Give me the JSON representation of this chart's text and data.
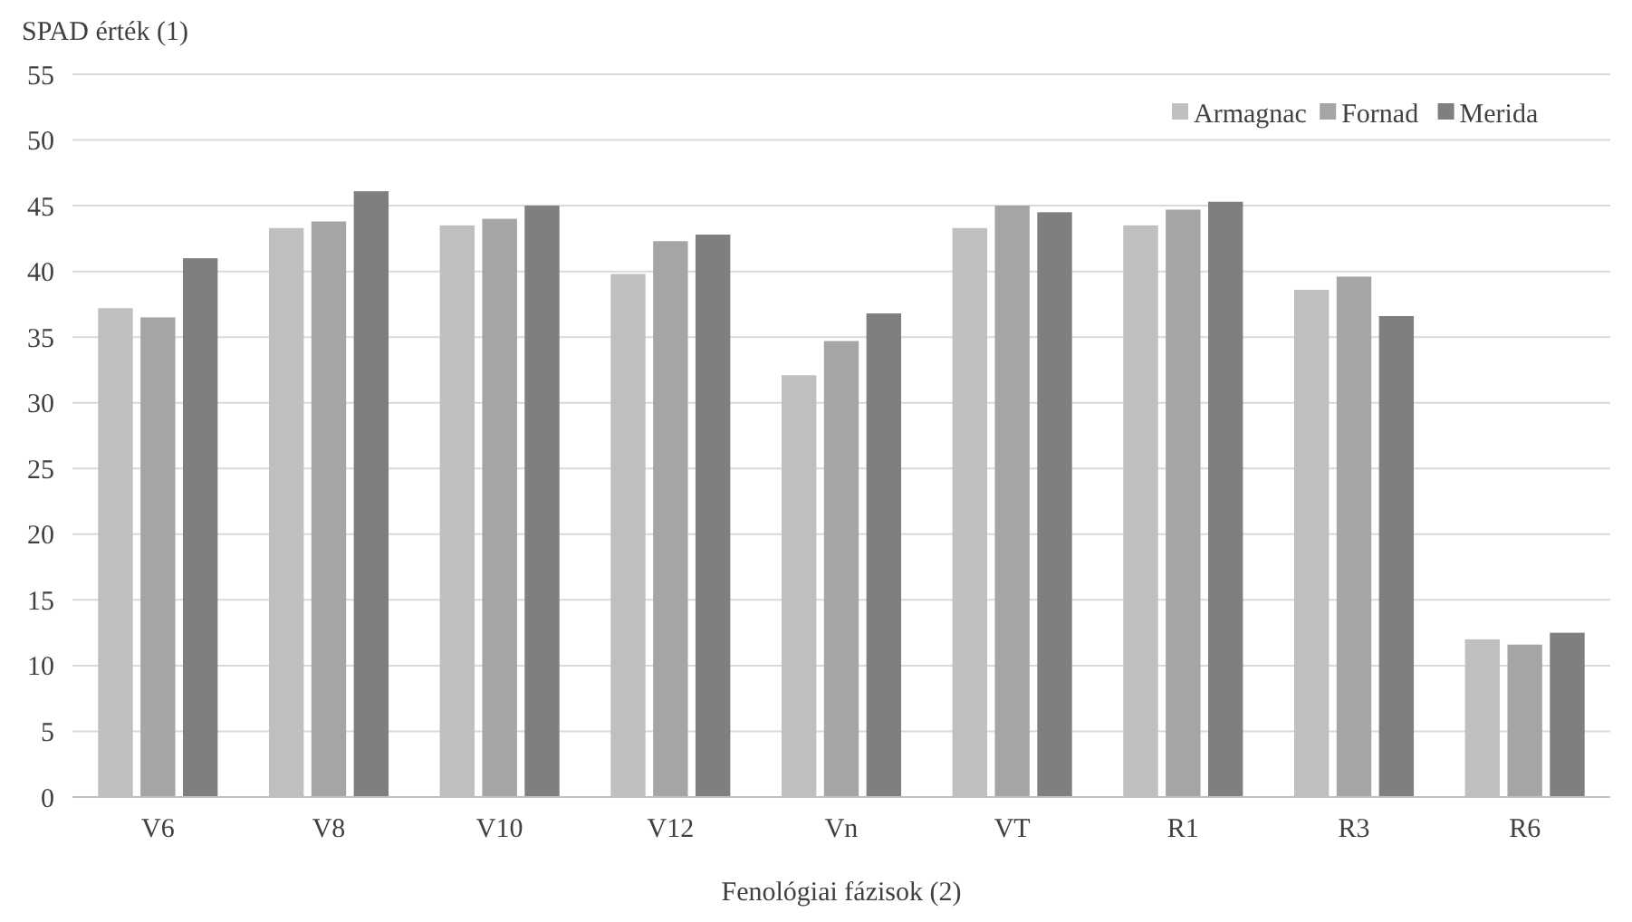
{
  "chart_data": {
    "type": "bar",
    "ylabel": "SPAD érték (1)",
    "xlabel": "Fenológiai fázisok (2)",
    "categories": [
      "V6",
      "V8",
      "V10",
      "V12",
      "Vn",
      "VT",
      "R1",
      "R3",
      "R6"
    ],
    "series": [
      {
        "name": "Armagnac",
        "color": "#bfbfbf",
        "values": [
          37.2,
          43.3,
          43.5,
          39.8,
          32.1,
          43.3,
          43.5,
          38.6,
          12
        ]
      },
      {
        "name": "Fornad",
        "color": "#a5a5a5",
        "values": [
          36.5,
          43.8,
          44,
          42.3,
          34.7,
          45,
          44.7,
          39.6,
          11.6
        ]
      },
      {
        "name": "Merida",
        "color": "#7f7f7f",
        "values": [
          41,
          46.1,
          45,
          42.8,
          36.8,
          44.5,
          45.3,
          36.6,
          12.5
        ]
      }
    ],
    "ylim": [
      0,
      55
    ],
    "yticks": [
      0,
      5,
      10,
      15,
      20,
      25,
      30,
      35,
      40,
      45,
      50,
      55
    ],
    "grid": "y",
    "legend": "top right"
  }
}
